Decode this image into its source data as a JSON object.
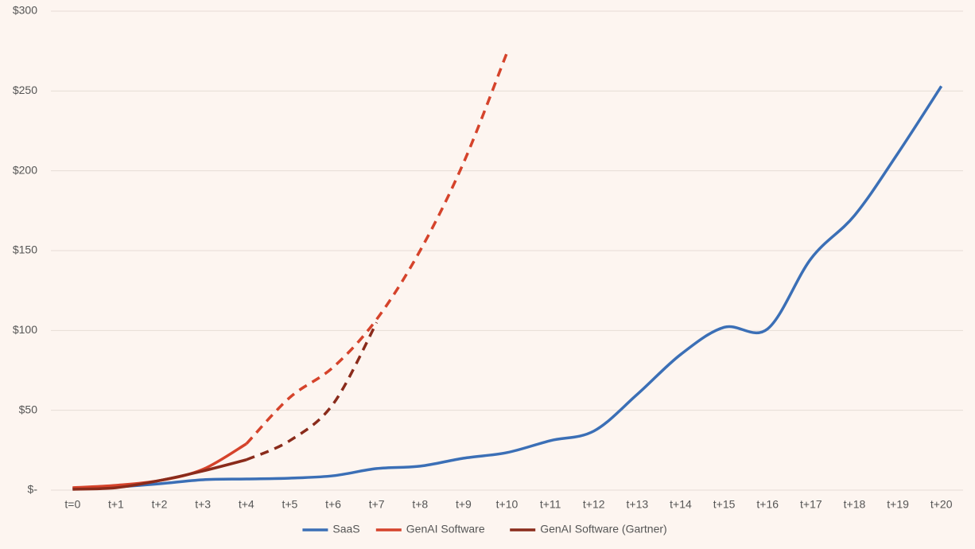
{
  "chart_data": {
    "type": "line",
    "categories": [
      "t=0",
      "t+1",
      "t+2",
      "t+3",
      "t+4",
      "t+5",
      "t+6",
      "t+7",
      "t+8",
      "t+9",
      "t+10",
      "t+11",
      "t+12",
      "t+13",
      "t+14",
      "t+15",
      "t+16",
      "t+17",
      "t+18",
      "t+19",
      "t+20"
    ],
    "series": [
      {
        "name": "SaaS",
        "color": "#3b6fb6",
        "values": [
          1,
          2,
          4,
          6.5,
          7,
          7.5,
          9,
          13.5,
          15,
          20,
          23.5,
          31,
          37,
          60,
          85,
          102,
          101,
          145,
          172,
          211,
          253
        ]
      },
      {
        "name": "GenAI Software",
        "color": "#d5432b",
        "dashed_from": "t+4",
        "values": [
          1.5,
          3,
          6,
          13,
          29,
          58,
          77,
          107,
          150,
          205,
          274,
          null,
          null,
          null,
          null,
          null,
          null,
          null,
          null,
          null,
          null
        ]
      },
      {
        "name": "GenAI Software (Gartner)",
        "color": "#8a2b1b",
        "dashed_from": "t+4",
        "values": [
          0.5,
          1.5,
          6,
          12,
          19,
          31,
          54,
          105,
          null,
          null,
          null,
          null,
          null,
          null,
          null,
          null,
          null,
          null,
          null,
          null,
          null
        ]
      }
    ],
    "ylim": [
      0,
      300
    ],
    "yticks": [
      {
        "value": 0,
        "label": "$-"
      },
      {
        "value": 50,
        "label": "$50"
      },
      {
        "value": 100,
        "label": "$100"
      },
      {
        "value": 150,
        "label": "$150"
      },
      {
        "value": 200,
        "label": "$200"
      },
      {
        "value": 250,
        "label": "$250"
      },
      {
        "value": 300,
        "label": "$300"
      }
    ],
    "grid": true,
    "legend": "bottom"
  }
}
